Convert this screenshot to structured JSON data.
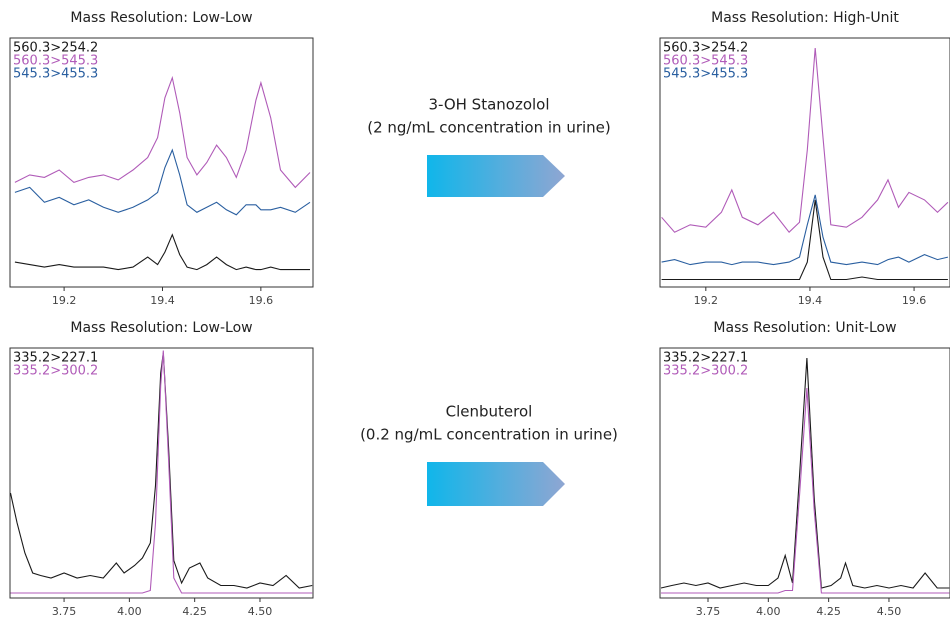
{
  "chart_data": [
    {
      "type": "line",
      "title": "Mass Resolution: Low-Low",
      "xlim": [
        19.09,
        19.706
      ],
      "ylim": [
        0,
        100
      ],
      "xticks": [
        19.2,
        19.4,
        19.6
      ],
      "x": [
        19.1,
        19.13,
        19.16,
        19.19,
        19.22,
        19.25,
        19.28,
        19.31,
        19.34,
        19.37,
        19.39,
        19.405,
        19.42,
        19.435,
        19.45,
        19.47,
        19.49,
        19.51,
        19.53,
        19.55,
        19.57,
        19.59,
        19.6,
        19.62,
        19.64,
        19.67,
        19.7
      ],
      "series": [
        {
          "name": "560.3>254.2",
          "color": "#1a1a1a",
          "values": [
            10,
            9,
            8,
            9,
            8,
            8,
            8,
            7,
            8,
            12,
            9,
            14,
            21,
            13,
            8,
            7,
            9,
            12,
            9,
            7,
            8,
            7,
            7,
            8,
            7,
            7,
            7
          ]
        },
        {
          "name": "560.3>545.3",
          "color": "#b05bb8",
          "values": [
            42,
            45,
            44,
            47,
            42,
            44,
            45,
            43,
            47,
            52,
            60,
            76,
            84,
            70,
            52,
            45,
            50,
            57,
            52,
            44,
            55,
            75,
            82,
            68,
            47,
            40,
            46
          ]
        },
        {
          "name": "545.3>455.3",
          "color": "#2a5fa0",
          "values": [
            38,
            40,
            34,
            36,
            33,
            35,
            32,
            30,
            32,
            35,
            38,
            48,
            55,
            45,
            33,
            30,
            32,
            34,
            31,
            29,
            33,
            33,
            31,
            31,
            32,
            30,
            34
          ]
        }
      ]
    },
    {
      "type": "line",
      "title": "Mass Resolution: High-Unit",
      "xlim": [
        19.112,
        19.669
      ],
      "ylim": [
        0,
        100
      ],
      "xticks": [
        19.2,
        19.4,
        19.6
      ],
      "x": [
        19.115,
        19.14,
        19.17,
        19.2,
        19.23,
        19.25,
        19.27,
        19.3,
        19.33,
        19.36,
        19.38,
        19.395,
        19.41,
        19.425,
        19.44,
        19.47,
        19.5,
        19.53,
        19.55,
        19.57,
        19.59,
        19.62,
        19.645,
        19.665
      ],
      "series": [
        {
          "name": "560.3>254.2",
          "color": "#1a1a1a",
          "values": [
            3,
            3,
            3,
            3,
            3,
            3,
            3,
            3,
            3,
            3,
            3,
            10,
            35,
            12,
            3,
            3,
            4,
            3,
            3,
            3,
            3,
            3,
            3,
            3
          ]
        },
        {
          "name": "560.3>545.3",
          "color": "#b05bb8",
          "values": [
            28,
            22,
            25,
            24,
            30,
            39,
            28,
            25,
            30,
            22,
            26,
            55,
            96,
            60,
            25,
            24,
            28,
            35,
            43,
            32,
            38,
            35,
            30,
            34
          ]
        },
        {
          "name": "545.3>455.3",
          "color": "#2a5fa0",
          "values": [
            10,
            11,
            9,
            10,
            10,
            9,
            10,
            10,
            9,
            10,
            12,
            25,
            37,
            20,
            10,
            9,
            10,
            9,
            11,
            12,
            10,
            13,
            11,
            12
          ]
        }
      ]
    },
    {
      "type": "line",
      "title": "Mass Resolution: Low-Low",
      "xlim": [
        3.543,
        4.703
      ],
      "ylim": [
        0,
        100
      ],
      "xticks": [
        3.75,
        {
          "value": 4,
          "label": "4.00"
        },
        4.25,
        {
          "value": 4.5,
          "label": "4.50"
        }
      ],
      "x": [
        3.545,
        3.57,
        3.6,
        3.63,
        3.66,
        3.7,
        3.75,
        3.8,
        3.85,
        3.9,
        3.95,
        3.98,
        4.02,
        4.05,
        4.08,
        4.1,
        4.12,
        4.13,
        4.15,
        4.17,
        4.2,
        4.23,
        4.27,
        4.3,
        4.35,
        4.4,
        4.45,
        4.5,
        4.55,
        4.6,
        4.65,
        4.7
      ],
      "series": [
        {
          "name": "335.2>227.1",
          "color": "#1a1a1a",
          "values": [
            42,
            30,
            18,
            10,
            9,
            8,
            10,
            8,
            9,
            8,
            14,
            10,
            13,
            16,
            22,
            45,
            90,
            98,
            60,
            15,
            6,
            12,
            14,
            8,
            5,
            5,
            4,
            6,
            5,
            9,
            4,
            5
          ]
        },
        {
          "name": "335.2>300.2",
          "color": "#b05bb8",
          "values": [
            2,
            2,
            2,
            2,
            2,
            2,
            2,
            2,
            2,
            2,
            2,
            2,
            2,
            2,
            3,
            30,
            85,
            99,
            55,
            8,
            2,
            2,
            2,
            2,
            2,
            2,
            2,
            2,
            2,
            2,
            2,
            2
          ]
        }
      ]
    },
    {
      "type": "line",
      "title": "Mass Resolution: Unit-Low",
      "xlim": [
        3.551,
        4.753
      ],
      "ylim": [
        0,
        100
      ],
      "xticks": [
        3.75,
        {
          "value": 4,
          "label": "4.00"
        },
        4.25,
        {
          "value": 4.5,
          "label": "4.50"
        }
      ],
      "x": [
        3.555,
        3.6,
        3.65,
        3.7,
        3.75,
        3.8,
        3.85,
        3.9,
        3.95,
        4.0,
        4.04,
        4.07,
        4.1,
        4.13,
        4.16,
        4.19,
        4.22,
        4.26,
        4.3,
        4.32,
        4.35,
        4.4,
        4.45,
        4.5,
        4.55,
        4.6,
        4.65,
        4.7,
        4.75
      ],
      "series": [
        {
          "name": "335.2>227.1",
          "color": "#1a1a1a",
          "values": [
            4,
            5,
            6,
            5,
            6,
            4,
            5,
            6,
            5,
            5,
            8,
            17,
            6,
            50,
            96,
            40,
            4,
            5,
            8,
            14,
            5,
            4,
            5,
            4,
            5,
            4,
            10,
            4,
            4
          ]
        },
        {
          "name": "335.2>300.2",
          "color": "#b05bb8",
          "values": [
            2,
            2,
            2,
            2,
            2,
            2,
            2,
            2,
            2,
            2,
            2,
            3,
            3,
            42,
            84,
            35,
            2,
            2,
            2,
            2,
            2,
            2,
            2,
            2,
            2,
            2,
            2,
            2,
            2
          ]
        }
      ]
    }
  ],
  "annotations": [
    {
      "title": "3-OH Stanozolol",
      "subtitle": "(2 ng/mL concentration in urine)"
    },
    {
      "title": "Clenbuterol",
      "subtitle": "(0.2 ng/mL concentration in urine)"
    }
  ]
}
